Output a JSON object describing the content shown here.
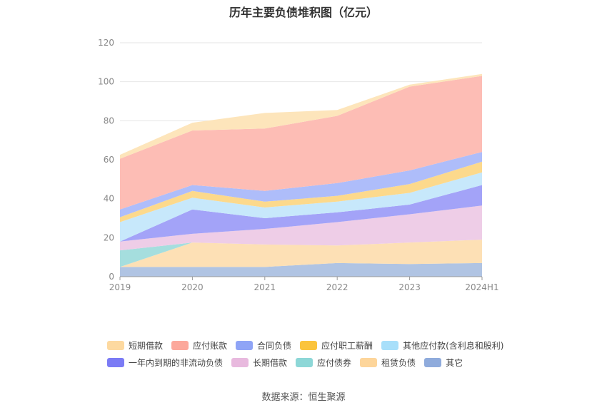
{
  "chart_data": {
    "type": "area",
    "stacked": true,
    "title": "历年主要负债堆积图（亿元）",
    "x": [
      "2019",
      "2020",
      "2021",
      "2022",
      "2023",
      "2024H1"
    ],
    "ylim": [
      0,
      120
    ],
    "yticks": [
      0,
      20,
      40,
      60,
      80,
      100,
      120
    ],
    "grid": true,
    "legend_position": "bottom",
    "series": [
      {
        "name": "其它",
        "color": "#b0c4e3",
        "values": [
          5,
          5,
          5,
          7,
          6.5,
          7
        ]
      },
      {
        "name": "租赁负债",
        "color": "#fde0b5",
        "values": [
          0,
          12.5,
          11.5,
          9,
          11,
          12
        ]
      },
      {
        "name": "应付债券",
        "color": "#a5dede",
        "values": [
          8.5,
          0,
          0,
          0,
          0,
          0
        ]
      },
      {
        "name": "长期借款",
        "color": "#eecde7",
        "values": [
          4.5,
          4.5,
          8,
          12,
          14.5,
          17.5
        ]
      },
      {
        "name": "一年内到期的非流动负债",
        "color": "#a3a3f8",
        "values": [
          0,
          12.5,
          5.5,
          5,
          5,
          10.5
        ]
      },
      {
        "name": "其他应付款(含利息和股利)",
        "color": "#c7e8fb",
        "values": [
          10,
          6,
          5.5,
          5.5,
          6,
          6.5
        ]
      },
      {
        "name": "应付职工薪酬",
        "color": "#fcd98c",
        "values": [
          2.5,
          3.5,
          3,
          3,
          4.5,
          5.5
        ]
      },
      {
        "name": "合同负债",
        "color": "#aebdfa",
        "values": [
          4,
          3,
          5.5,
          6.5,
          7,
          5
        ]
      },
      {
        "name": "应付账款",
        "color": "#fdbdb5",
        "values": [
          26,
          28,
          32,
          34.5,
          43,
          39
        ]
      },
      {
        "name": "短期借款",
        "color": "#fde5bb",
        "values": [
          2,
          4,
          8,
          3,
          1,
          1
        ]
      }
    ],
    "legend_order": [
      "短期借款",
      "应付账款",
      "合同负债",
      "应付职工薪酬",
      "其他应付款(含利息和股利)",
      "一年内到期的非流动负债",
      "长期借款",
      "应付债券",
      "租赁负债",
      "其它"
    ],
    "legend_colors": {
      "短期借款": "#fdd9a0",
      "应付账款": "#fca89b",
      "合同负债": "#8fa4f6",
      "应付职工薪酬": "#fbc43c",
      "其他应付款(含利息和股利)": "#a8dffa",
      "一年内到期的非流动负债": "#7b7bf5",
      "长期借款": "#e8b9de",
      "应付债券": "#8dd7d7",
      "租赁负债": "#fdd59a",
      "其它": "#8fabdc"
    }
  },
  "source": "数据来源：恒生聚源"
}
